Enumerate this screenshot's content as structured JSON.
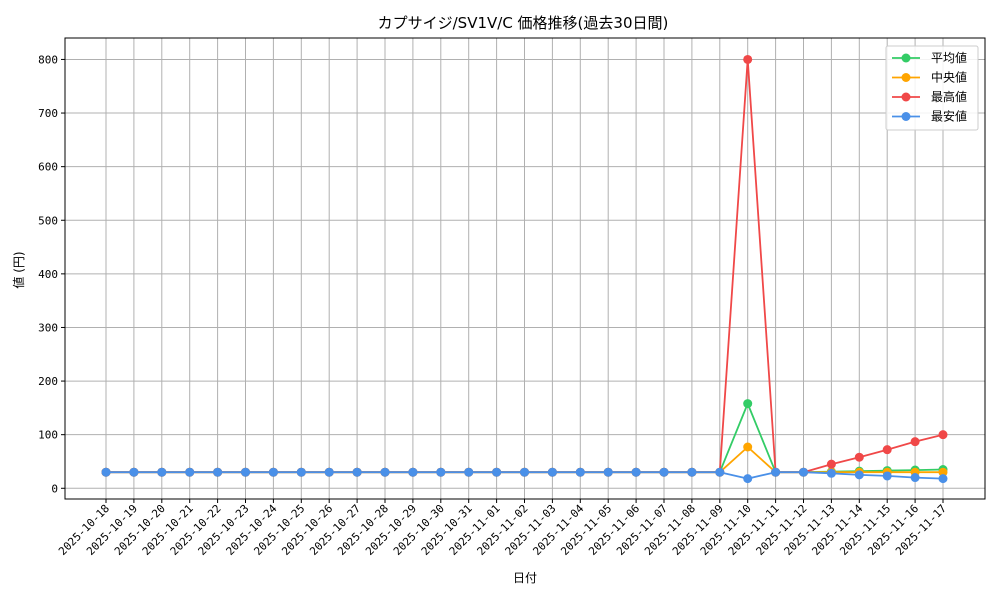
{
  "chart_data": {
    "type": "line",
    "title": "カプサイジ/SV1V/C 価格推移(過去30日間)",
    "xlabel": "日付",
    "ylabel": "値 (円)",
    "ylim": [
      -20,
      840
    ],
    "yticks": [
      0,
      100,
      200,
      300,
      400,
      500,
      600,
      700,
      800
    ],
    "grid": true,
    "legend_position": "top-right",
    "categories": [
      "2025-10-18",
      "2025-10-19",
      "2025-10-20",
      "2025-10-21",
      "2025-10-22",
      "2025-10-23",
      "2025-10-24",
      "2025-10-25",
      "2025-10-26",
      "2025-10-27",
      "2025-10-28",
      "2025-10-29",
      "2025-10-30",
      "2025-10-31",
      "2025-11-01",
      "2025-11-02",
      "2025-11-03",
      "2025-11-04",
      "2025-11-05",
      "2025-11-06",
      "2025-11-07",
      "2025-11-08",
      "2025-11-09",
      "2025-11-10",
      "2025-11-11",
      "2025-11-12",
      "2025-11-13",
      "2025-11-14",
      "2025-11-15",
      "2025-11-16",
      "2025-11-17"
    ],
    "series": [
      {
        "name": "平均値",
        "color": "#33cc66",
        "values": [
          30,
          30,
          30,
          30,
          30,
          30,
          30,
          30,
          30,
          30,
          30,
          30,
          30,
          30,
          30,
          30,
          30,
          30,
          30,
          30,
          30,
          30,
          30,
          158,
          30,
          30,
          31,
          32,
          33,
          34,
          35
        ]
      },
      {
        "name": "中央値",
        "color": "#ffa500",
        "values": [
          30,
          30,
          30,
          30,
          30,
          30,
          30,
          30,
          30,
          30,
          30,
          30,
          30,
          30,
          30,
          30,
          30,
          30,
          30,
          30,
          30,
          30,
          30,
          77,
          30,
          30,
          30,
          30,
          30,
          30,
          30
        ]
      },
      {
        "name": "最高値",
        "color": "#f04848",
        "values": [
          30,
          30,
          30,
          30,
          30,
          30,
          30,
          30,
          30,
          30,
          30,
          30,
          30,
          30,
          30,
          30,
          30,
          30,
          30,
          30,
          30,
          30,
          30,
          800,
          30,
          30,
          45,
          58,
          72,
          87,
          100
        ]
      },
      {
        "name": "最安値",
        "color": "#4a90e8",
        "values": [
          30,
          30,
          30,
          30,
          30,
          30,
          30,
          30,
          30,
          30,
          30,
          30,
          30,
          30,
          30,
          30,
          30,
          30,
          30,
          30,
          30,
          30,
          30,
          18,
          30,
          30,
          28,
          25,
          23,
          20,
          18
        ]
      }
    ]
  }
}
